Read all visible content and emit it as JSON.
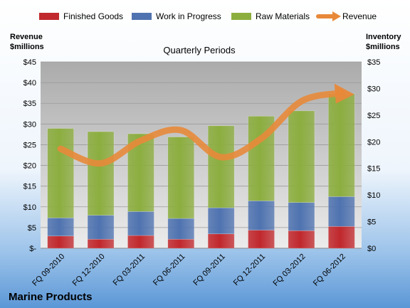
{
  "chart_data": {
    "type": "bar",
    "stacked": true,
    "title": "Marine Products",
    "subtitle": "Quarterly Periods",
    "categories": [
      "FQ 09-2010",
      "FQ 12-2010",
      "FQ 03-2011",
      "FQ 06-2011",
      "FQ 09-2011",
      "FQ 12-2011",
      "FQ 03-2012",
      "FQ 06-2012"
    ],
    "left_axis": {
      "title_line1": "Revenue",
      "title_line2": "$millions",
      "ticks": [
        "$-",
        "$5",
        "$10",
        "$15",
        "$20",
        "$25",
        "$30",
        "$35",
        "$40",
        "$45"
      ],
      "ylim": [
        0,
        45
      ]
    },
    "right_axis": {
      "title_line1": "Inventory",
      "title_line2": "$millions",
      "ticks": [
        "$0",
        "$5",
        "$10",
        "$15",
        "$20",
        "$25",
        "$30",
        "$35"
      ],
      "ylim": [
        0,
        35
      ]
    },
    "series": [
      {
        "name": "Finished Goods",
        "axis": "right",
        "kind": "bar",
        "color": "#c0282d",
        "values": [
          2.3,
          1.7,
          2.4,
          1.7,
          2.7,
          3.4,
          3.3,
          4.1
        ]
      },
      {
        "name": "Work in Progress",
        "axis": "right",
        "kind": "bar",
        "color": "#4f73b0",
        "values": [
          3.4,
          4.5,
          4.5,
          3.9,
          4.9,
          5.5,
          5.3,
          5.6
        ]
      },
      {
        "name": "Raw Materials",
        "axis": "right",
        "kind": "bar",
        "color": "#8cae3f",
        "values": [
          16.8,
          15.7,
          14.6,
          15.3,
          15.4,
          15.9,
          17.2,
          19.3
        ]
      },
      {
        "name": "Revenue",
        "axis": "left",
        "kind": "line",
        "color": "#e8893a",
        "values": [
          24.0,
          20.5,
          26.0,
          28.5,
          22.0,
          26.5,
          35.5,
          37.5
        ]
      }
    ],
    "grid": true,
    "legend": "top"
  }
}
